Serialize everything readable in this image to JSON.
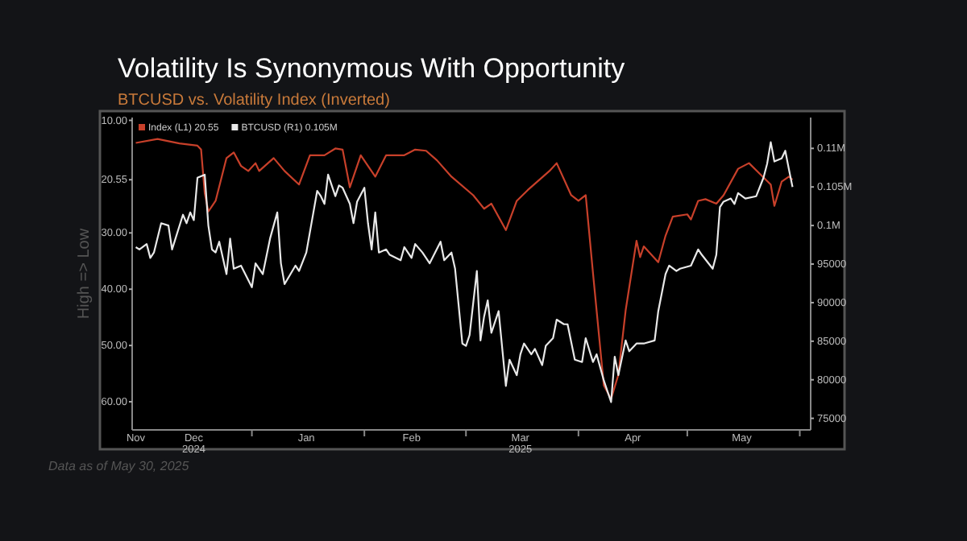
{
  "chart_data": {
    "type": "line",
    "title": "Volatility Is Synonymous With Opportunity",
    "subtitle": "BTCUSD vs. Volatility Index (Inverted)",
    "ylabel": "High => Low",
    "annotations": [
      "Data as of May 30, 2025"
    ],
    "legend": "top left",
    "xlim": [
      "2024-11-29",
      "2025-06-04"
    ],
    "xticks": [
      {
        "value": "2024-11-30",
        "label": "Nov"
      },
      {
        "value": "2024-12-16",
        "label": "Dec\n2024"
      },
      {
        "value": "2025-01-01",
        "label": null
      },
      {
        "value": "2025-01-16",
        "label": "Jan"
      },
      {
        "value": "2025-02-01",
        "label": null
      },
      {
        "value": "2025-02-14",
        "label": "Feb"
      },
      {
        "value": "2025-03-01",
        "label": null
      },
      {
        "value": "2025-03-16",
        "label": "Mar\n2025"
      },
      {
        "value": "2025-04-01",
        "label": null
      },
      {
        "value": "2025-04-16",
        "label": "Apr"
      },
      {
        "value": "2025-05-01",
        "label": null
      },
      {
        "value": "2025-05-16",
        "label": "May"
      },
      {
        "value": "2025-06-01",
        "label": null
      }
    ],
    "ylim": [
      65,
      9.5
    ],
    "yticks": [
      {
        "value": 10,
        "label": "10.00"
      },
      {
        "value": 20.55,
        "label": "20.55"
      },
      {
        "value": 30,
        "label": "30.00"
      },
      {
        "value": 40,
        "label": "40.00"
      },
      {
        "value": 50,
        "label": "50.00"
      },
      {
        "value": 60,
        "label": "60.00"
      }
    ],
    "y2lim": [
      73500,
      114000
    ],
    "y2ticks": [
      75000,
      80000,
      85000,
      90000,
      95000,
      {
        "value": 100000,
        "label": "0.1M"
      },
      {
        "value": 105000,
        "label": "0.105M"
      },
      {
        "value": 110000,
        "label": "0.11M"
      }
    ],
    "series": [
      {
        "name": "Index (L1) 20.55",
        "color": "#c8402a",
        "axis": "y",
        "x": [
          "2024-11-30",
          "2024-12-06",
          "2024-12-12",
          "2024-12-17",
          "2024-12-18",
          "2024-12-19",
          "2024-12-20",
          "2024-12-22",
          "2024-12-25",
          "2024-12-27",
          "2024-12-29",
          "2024-12-31",
          "2025-01-02",
          "2025-01-03",
          "2025-01-07",
          "2025-01-10",
          "2025-01-14",
          "2025-01-17",
          "2025-01-21",
          "2025-01-24",
          "2025-01-26",
          "2025-01-28",
          "2025-01-31",
          "2025-02-04",
          "2025-02-07",
          "2025-02-12",
          "2025-02-15",
          "2025-02-18",
          "2025-02-21",
          "2025-02-25",
          "2025-03-03",
          "2025-03-06",
          "2025-03-08",
          "2025-03-12",
          "2025-03-15",
          "2025-03-18",
          "2025-03-24",
          "2025-03-26",
          "2025-03-30",
          "2025-04-01",
          "2025-04-03",
          "2025-04-05",
          "2025-04-08",
          "2025-04-10",
          "2025-04-12",
          "2025-04-14",
          "2025-04-17",
          "2025-04-18",
          "2025-04-19",
          "2025-04-23",
          "2025-04-25",
          "2025-04-27",
          "2025-05-01",
          "2025-05-02",
          "2025-05-04",
          "2025-05-06",
          "2025-05-09",
          "2025-05-11",
          "2025-05-15",
          "2025-05-18",
          "2025-05-21",
          "2025-05-24",
          "2025-05-25",
          "2025-05-27",
          "2025-05-29",
          "2025-05-30"
        ],
        "values": [
          14.0,
          13.3,
          14.1,
          14.5,
          15.2,
          22.9,
          26.2,
          24.3,
          16.7,
          15.7,
          18.1,
          19.0,
          17.6,
          19.0,
          16.7,
          19.0,
          21.4,
          16.2,
          16.2,
          15.0,
          15.2,
          21.9,
          16.2,
          20.0,
          16.2,
          16.2,
          15.2,
          15.4,
          17.1,
          20.0,
          23.3,
          25.7,
          24.8,
          29.5,
          24.3,
          22.4,
          19.0,
          17.6,
          23.3,
          24.3,
          23.3,
          37.1,
          57.1,
          59.5,
          55.2,
          43.8,
          31.4,
          34.3,
          32.4,
          35.2,
          30.5,
          27.1,
          26.7,
          27.6,
          24.3,
          24.0,
          24.8,
          23.3,
          18.6,
          17.6,
          19.5,
          21.4,
          25.2,
          20.9,
          20.0,
          20.55
        ]
      },
      {
        "name": "BTCUSD (R1) 0.105M",
        "color": "#e8e8e8",
        "axis": "y2",
        "x": [
          "2024-11-30",
          "2024-12-01",
          "2024-12-03",
          "2024-12-04",
          "2024-12-05",
          "2024-12-07",
          "2024-12-09",
          "2024-12-10",
          "2024-12-13",
          "2024-12-14",
          "2024-12-15",
          "2024-12-16",
          "2024-12-17",
          "2024-12-19",
          "2024-12-20",
          "2024-12-21",
          "2024-12-22",
          "2024-12-23",
          "2024-12-25",
          "2024-12-26",
          "2024-12-27",
          "2024-12-29",
          "2025-01-01",
          "2025-01-02",
          "2025-01-04",
          "2025-01-06",
          "2025-01-08",
          "2025-01-09",
          "2025-01-10",
          "2025-01-13",
          "2025-01-14",
          "2025-01-16",
          "2025-01-19",
          "2025-01-20",
          "2025-01-21",
          "2025-01-22",
          "2025-01-24",
          "2025-01-25",
          "2025-01-26",
          "2025-01-28",
          "2025-01-29",
          "2025-01-30",
          "2025-02-01",
          "2025-02-02",
          "2025-02-03",
          "2025-02-04",
          "2025-02-05",
          "2025-02-07",
          "2025-02-08",
          "2025-02-11",
          "2025-02-12",
          "2025-02-14",
          "2025-02-15",
          "2025-02-17",
          "2025-02-19",
          "2025-02-22",
          "2025-02-23",
          "2025-02-25",
          "2025-02-26",
          "2025-02-28",
          "2025-03-01",
          "2025-03-02",
          "2025-03-04",
          "2025-03-05",
          "2025-03-06",
          "2025-03-07",
          "2025-03-08",
          "2025-03-10",
          "2025-03-12",
          "2025-03-13",
          "2025-03-15",
          "2025-03-16",
          "2025-03-17",
          "2025-03-19",
          "2025-03-20",
          "2025-03-22",
          "2025-03-23",
          "2025-03-25",
          "2025-03-26",
          "2025-03-28",
          "2025-03-29",
          "2025-03-31",
          "2025-04-02",
          "2025-04-03",
          "2025-04-05",
          "2025-04-06",
          "2025-04-08",
          "2025-04-10",
          "2025-04-11",
          "2025-04-12",
          "2025-04-14",
          "2025-04-15",
          "2025-04-17",
          "2025-04-19",
          "2025-04-22",
          "2025-04-23",
          "2025-04-25",
          "2025-04-26",
          "2025-04-28",
          "2025-04-29",
          "2025-05-02",
          "2025-05-04",
          "2025-05-05",
          "2025-05-08",
          "2025-05-09",
          "2025-05-10",
          "2025-05-11",
          "2025-05-13",
          "2025-05-14",
          "2025-05-15",
          "2025-05-17",
          "2025-05-20",
          "2025-05-22",
          "2025-05-23",
          "2025-05-24",
          "2025-05-25",
          "2025-05-27",
          "2025-05-28",
          "2025-05-29",
          "2025-05-30"
        ],
        "values": [
          97200,
          96900,
          97600,
          95800,
          96500,
          100300,
          100000,
          96900,
          101400,
          100300,
          101700,
          100700,
          106200,
          106600,
          100000,
          96900,
          96500,
          97900,
          93700,
          98300,
          94400,
          94800,
          92000,
          95100,
          93700,
          98300,
          101700,
          95100,
          92400,
          94800,
          94100,
          96500,
          104500,
          103800,
          102800,
          106600,
          103800,
          105200,
          104900,
          102800,
          100300,
          103100,
          104900,
          100300,
          96900,
          101700,
          96500,
          96900,
          96200,
          95500,
          97200,
          95800,
          97600,
          96500,
          95100,
          97900,
          95500,
          96500,
          94400,
          84700,
          84400,
          85800,
          94100,
          85100,
          88200,
          90300,
          86100,
          88900,
          79200,
          82600,
          80600,
          83300,
          84700,
          83300,
          84000,
          81900,
          84400,
          85400,
          87800,
          87200,
          87200,
          82600,
          82300,
          85400,
          82300,
          83300,
          79900,
          77100,
          83000,
          80600,
          85100,
          83700,
          84700,
          84700,
          85100,
          88900,
          93700,
          94800,
          94100,
          94400,
          94800,
          96900,
          96200,
          94400,
          96200,
          102400,
          103100,
          103500,
          102800,
          104200,
          103500,
          103800,
          106200,
          108000,
          110800,
          108300,
          108700,
          109700,
          107300,
          105000
        ]
      }
    ]
  }
}
